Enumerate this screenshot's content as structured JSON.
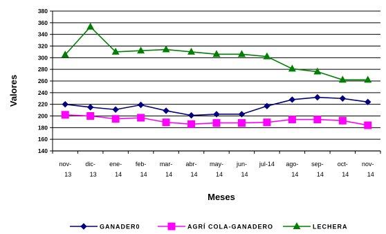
{
  "chart_data": {
    "type": "line",
    "title": "",
    "xlabel": "Meses",
    "ylabel": "Valores",
    "ylim": [
      140,
      380
    ],
    "yticks": [
      140,
      160,
      180,
      200,
      220,
      240,
      260,
      280,
      300,
      320,
      340,
      360,
      380
    ],
    "grid": true,
    "legend_position": "bottom",
    "categories": [
      [
        "nov-",
        "13"
      ],
      [
        "dic-",
        "13"
      ],
      [
        "ene-",
        "14"
      ],
      [
        "feb-",
        "14"
      ],
      [
        "mar-",
        "14"
      ],
      [
        "abr-",
        "14"
      ],
      [
        "may-",
        "14"
      ],
      [
        "jun-",
        "14"
      ],
      [
        "jul-14",
        ""
      ],
      [
        "ago-",
        "14"
      ],
      [
        "sep-",
        "14"
      ],
      [
        "oct-",
        "14"
      ],
      [
        "nov-",
        "14"
      ]
    ],
    "series": [
      {
        "name": "GANADER0",
        "color": "#000080",
        "marker": "diamond",
        "values": [
          220,
          215,
          211,
          219,
          209,
          201,
          203,
          203,
          217,
          228,
          232,
          230,
          224
        ]
      },
      {
        "name": "AGRÍ COLA-GANADERO",
        "color": "#FF00FF",
        "marker": "square",
        "values": [
          202,
          200,
          195,
          197,
          189,
          186,
          188,
          188,
          189,
          194,
          194,
          192,
          184
        ]
      },
      {
        "name": "LECHERA",
        "color": "#008000",
        "marker": "triangle",
        "values": [
          305,
          353,
          310,
          312,
          314,
          310,
          306,
          306,
          302,
          281,
          276,
          262,
          262
        ]
      }
    ]
  }
}
